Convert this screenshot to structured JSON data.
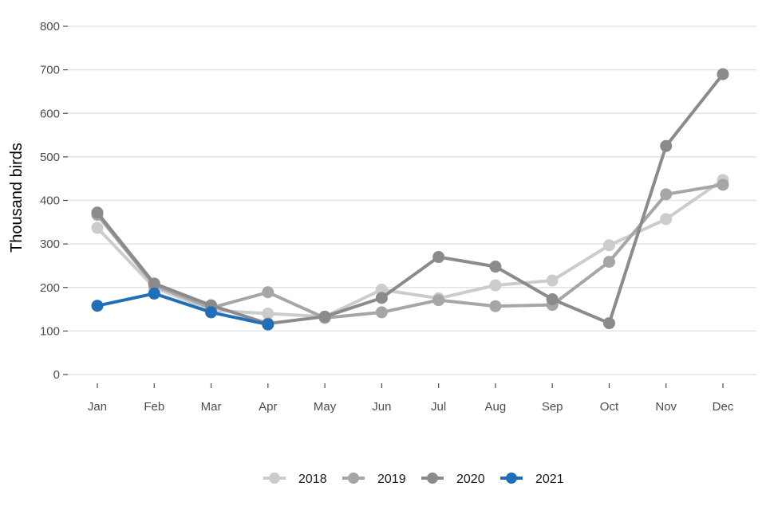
{
  "chart_data": {
    "type": "line",
    "title": "",
    "xlabel": "",
    "ylabel": "Thousand birds",
    "ylim": [
      0,
      800
    ],
    "yticks": [
      0,
      100,
      200,
      300,
      400,
      500,
      600,
      700,
      800
    ],
    "grid": "horizontal",
    "legend_position": "bottom",
    "categories": [
      "Jan",
      "Feb",
      "Mar",
      "Apr",
      "May",
      "Jun",
      "Jul",
      "Aug",
      "Sep",
      "Oct",
      "Nov",
      "Dec"
    ],
    "series": [
      {
        "name": "2018",
        "color": "#cccccc",
        "values": [
          337,
          200,
          148,
          140,
          133,
          195,
          175,
          205,
          216,
          297,
          357,
          447
        ]
      },
      {
        "name": "2019",
        "color": "#a6a6a6",
        "values": [
          367,
          205,
          153,
          189,
          130,
          143,
          171,
          157,
          160,
          259,
          414,
          436
        ]
      },
      {
        "name": "2020",
        "color": "#8c8a8a",
        "values": [
          372,
          209,
          159,
          117,
          133,
          176,
          270,
          248,
          173,
          118,
          525,
          690
        ]
      },
      {
        "name": "2021",
        "color": "#1f6fb8",
        "values": [
          158,
          186,
          143,
          115,
          null,
          null,
          null,
          null,
          null,
          null,
          null,
          null
        ]
      }
    ]
  }
}
